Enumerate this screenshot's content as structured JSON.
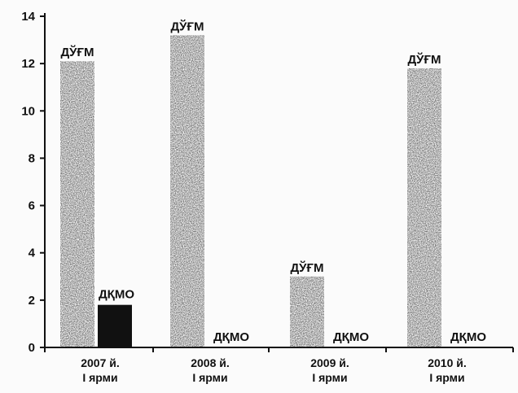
{
  "chart_data": {
    "type": "bar",
    "categories": [
      [
        "2007 й.",
        "I ярми"
      ],
      [
        "2008 й.",
        "I ярми"
      ],
      [
        "2009 й.",
        "I ярми"
      ],
      [
        "2010 й.",
        "I ярми"
      ]
    ],
    "series": [
      {
        "values": [
          12.1,
          13.2,
          3.0,
          11.8
        ],
        "labels": [
          "ДЎҒМ",
          "ДЎҒМ",
          "ДЎҒМ",
          "ДЎҒМ"
        ],
        "color": "#3a3a3a"
      },
      {
        "values": [
          1.8,
          0,
          0,
          0
        ],
        "labels": [
          "ДҚМО",
          "ДҚМО",
          "ДҚМО",
          "ДҚМО"
        ],
        "color": "#111111"
      }
    ],
    "ylim": [
      0,
      14
    ],
    "yticks": [
      0,
      2,
      4,
      6,
      8,
      10,
      12,
      14
    ],
    "grid": false,
    "legend": "none"
  }
}
